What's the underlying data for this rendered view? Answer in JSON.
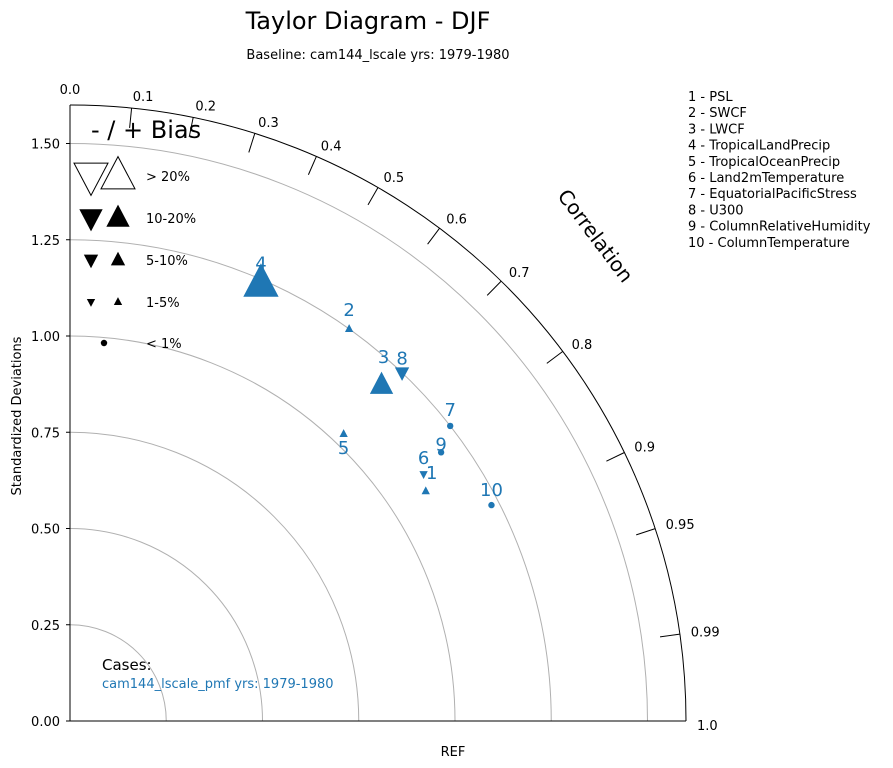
{
  "title": "Taylor Diagram - DJF",
  "subtitle": "Baseline: cam144_lscale  yrs: 1979-1980",
  "legend_list": [
    "1 - PSL",
    "2 - SWCF",
    "3 - LWCF",
    "4 - TropicalLandPrecip",
    "5 - TropicalOceanPrecip",
    "6 - Land2mTemperature",
    "7 - EquatorialPacificStress",
    "8 - U300",
    "9 - ColumnRelativeHumidity",
    "10 - ColumnTemperature"
  ],
  "bias_legend": {
    "title": "- / + Bias",
    "rows": [
      "> 20%",
      "10-20%",
      "5-10%",
      "1-5%",
      "< 1%"
    ]
  },
  "cases": {
    "label": "Cases:",
    "name": "cam144_lscale_pmf  yrs: 1979-1980"
  },
  "colors": {
    "accent": "#1f77b4",
    "grid": "#b0b0b0",
    "axis": "#000000"
  },
  "chart_data": {
    "type": "scatter",
    "subtype": "taylor-diagram",
    "ylabel": "Standardized Deviations",
    "xlabel": "REF",
    "corr_label": "Correlation",
    "std_range": [
      0,
      1.6
    ],
    "std_ticks": [
      "0.00",
      "0.25",
      "0.50",
      "0.75",
      "1.00",
      "1.25",
      "1.50"
    ],
    "std_tick_values": [
      0,
      0.25,
      0.5,
      0.75,
      1.0,
      1.25,
      1.5
    ],
    "corr_ticks": [
      {
        "v": 0.0,
        "label": "0.0"
      },
      {
        "v": 0.1,
        "label": "0.1"
      },
      {
        "v": 0.2,
        "label": "0.2"
      },
      {
        "v": 0.3,
        "label": "0.3"
      },
      {
        "v": 0.4,
        "label": "0.4"
      },
      {
        "v": 0.5,
        "label": "0.5"
      },
      {
        "v": 0.6,
        "label": "0.6"
      },
      {
        "v": 0.7,
        "label": "0.7"
      },
      {
        "v": 0.8,
        "label": "0.8"
      },
      {
        "v": 0.9,
        "label": "0.9"
      },
      {
        "v": 0.95,
        "label": "0.95"
      },
      {
        "v": 0.99,
        "label": "0.99"
      },
      {
        "v": 1.0,
        "label": "1.0"
      }
    ],
    "grid_arcs": [
      0.25,
      0.5,
      0.75,
      1.0,
      1.25,
      1.5
    ],
    "points": [
      {
        "id": "1",
        "corr": 0.84,
        "std": 1.1,
        "bias": "1-5%",
        "dir": "+"
      },
      {
        "id": "2",
        "corr": 0.58,
        "std": 1.25,
        "bias": "1-5%",
        "dir": "+"
      },
      {
        "id": "3",
        "corr": 0.68,
        "std": 1.19,
        "bias": "10-20%",
        "dir": "+"
      },
      {
        "id": "4",
        "corr": 0.4,
        "std": 1.24,
        "bias": "> 20%",
        "dir": "+"
      },
      {
        "id": "5",
        "corr": 0.69,
        "std": 1.03,
        "bias": "1-5%",
        "dir": "+"
      },
      {
        "id": "6",
        "corr": 0.82,
        "std": 1.12,
        "bias": "1-5%",
        "dir": "-"
      },
      {
        "id": "7",
        "corr": 0.79,
        "std": 1.25,
        "bias": "< 1%",
        "dir": "+"
      },
      {
        "id": "8",
        "corr": 0.69,
        "std": 1.25,
        "bias": "5-10%",
        "dir": "-"
      },
      {
        "id": "9",
        "corr": 0.81,
        "std": 1.19,
        "bias": "< 1%",
        "dir": "+"
      },
      {
        "id": "10",
        "corr": 0.89,
        "std": 1.23,
        "bias": "< 1%",
        "dir": "+"
      }
    ]
  }
}
